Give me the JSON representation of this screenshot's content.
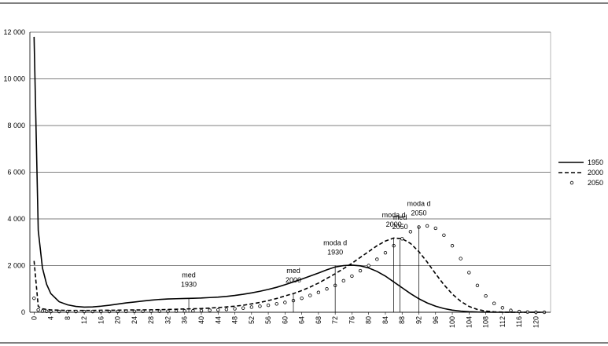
{
  "chart_data": {
    "type": "line",
    "x": [
      0,
      1,
      2,
      3,
      4,
      6,
      8,
      10,
      12,
      14,
      16,
      18,
      20,
      22,
      24,
      26,
      28,
      30,
      32,
      34,
      36,
      38,
      40,
      42,
      44,
      46,
      48,
      50,
      52,
      54,
      56,
      58,
      60,
      62,
      64,
      66,
      68,
      70,
      72,
      74,
      76,
      78,
      80,
      82,
      84,
      86,
      88,
      90,
      92,
      94,
      96,
      98,
      100,
      102,
      104,
      106,
      108,
      110,
      112,
      114,
      116,
      118,
      120,
      122
    ],
    "series": [
      {
        "name": "1950",
        "color": "#000000",
        "style": "solid",
        "values": [
          11800,
          3500,
          1900,
          1200,
          800,
          450,
          320,
          250,
          220,
          230,
          260,
          300,
          350,
          400,
          440,
          480,
          520,
          550,
          570,
          580,
          590,
          600,
          610,
          630,
          650,
          680,
          720,
          770,
          830,
          900,
          980,
          1070,
          1180,
          1300,
          1420,
          1550,
          1680,
          1820,
          1940,
          2000,
          2020,
          1990,
          1900,
          1750,
          1550,
          1300,
          1050,
          800,
          580,
          400,
          260,
          160,
          90,
          50,
          25,
          10,
          5,
          0,
          0,
          0,
          0,
          0,
          0,
          0
        ]
      },
      {
        "name": "2000",
        "color": "#000000",
        "style": "dashed",
        "values": [
          2200,
          250,
          150,
          120,
          100,
          90,
          80,
          80,
          80,
          80,
          85,
          85,
          90,
          95,
          100,
          100,
          105,
          110,
          120,
          130,
          140,
          150,
          160,
          180,
          200,
          230,
          260,
          300,
          360,
          420,
          500,
          590,
          700,
          800,
          930,
          1080,
          1250,
          1450,
          1650,
          1870,
          2100,
          2350,
          2600,
          2850,
          3050,
          3180,
          3150,
          2950,
          2600,
          2150,
          1650,
          1180,
          780,
          470,
          250,
          120,
          50,
          20,
          5,
          0,
          0,
          0,
          0,
          0
        ]
      },
      {
        "name": "2050",
        "color": "#000000",
        "style": "dotted",
        "values": [
          600,
          100,
          50,
          40,
          30,
          30,
          30,
          30,
          30,
          30,
          30,
          30,
          30,
          35,
          35,
          40,
          40,
          45,
          45,
          50,
          55,
          60,
          70,
          85,
          100,
          120,
          150,
          180,
          220,
          260,
          300,
          360,
          420,
          500,
          600,
          720,
          850,
          1000,
          1150,
          1350,
          1550,
          1780,
          2000,
          2270,
          2550,
          2850,
          3150,
          3450,
          3650,
          3700,
          3600,
          3300,
          2850,
          2300,
          1700,
          1150,
          700,
          380,
          190,
          80,
          30,
          10,
          0,
          0
        ]
      }
    ],
    "xlim": [
      -1,
      123.5
    ],
    "xticks": [
      0,
      4,
      8,
      12,
      16,
      20,
      24,
      28,
      32,
      36,
      40,
      44,
      48,
      52,
      56,
      60,
      64,
      68,
      72,
      76,
      80,
      84,
      88,
      92,
      96,
      100,
      104,
      108,
      112,
      116,
      120
    ],
    "ylim": [
      0,
      12000
    ],
    "yticks": [
      0,
      {
        "value": 2000,
        "label": "2 000"
      },
      {
        "value": 4000,
        "label": "4 000"
      },
      {
        "value": 6000,
        "label": "6 000"
      },
      {
        "value": 8000,
        "label": "8 000"
      },
      {
        "value": 10000,
        "label": "10 000"
      },
      {
        "value": 12000,
        "label": "12 000"
      }
    ],
    "grid": true,
    "legend": "right",
    "annotations": [
      {
        "lines": [
          "med",
          "1930"
        ],
        "x": 37,
        "y": 620
      },
      {
        "lines": [
          "med",
          "2000"
        ],
        "x": 62,
        "y": 800
      },
      {
        "lines": [
          "moda d",
          "1930"
        ],
        "x": 72,
        "y": 2000
      },
      {
        "lines": [
          "moda d",
          "2000"
        ],
        "x": 86,
        "y": 3200
      },
      {
        "lines": [
          "med",
          "2050"
        ],
        "x": 87.5,
        "y": 3100
      },
      {
        "lines": [
          "moda d",
          "2050"
        ],
        "x": 92,
        "y": 3680
      }
    ]
  }
}
